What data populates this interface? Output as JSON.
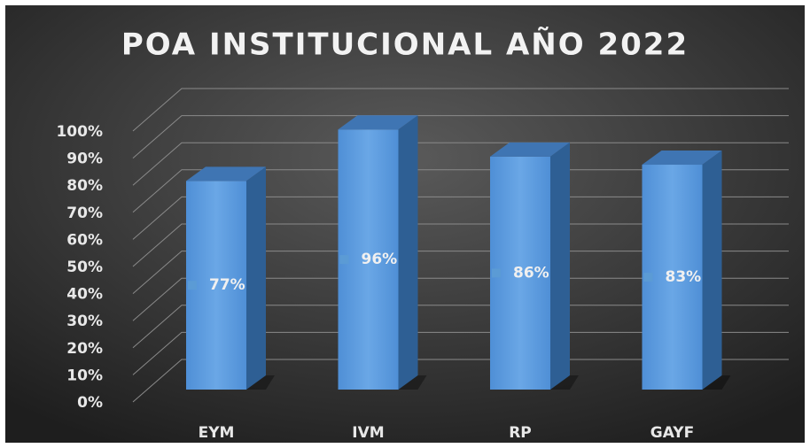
{
  "chart_data": {
    "type": "bar3d",
    "title": "POA INSTITUCIONAL AÑO 2022",
    "categories": [
      "EYM",
      "IVM",
      "RP",
      "GAYF"
    ],
    "values": [
      77,
      96,
      86,
      83
    ],
    "value_labels": [
      "77%",
      "96%",
      "86%",
      "83%"
    ],
    "color": "#5b9bd5",
    "ylim": [
      0,
      100
    ],
    "yticks": [
      {
        "value": 0,
        "label": "0%"
      },
      {
        "value": 10,
        "label": "10%"
      },
      {
        "value": 20,
        "label": "20%"
      },
      {
        "value": 30,
        "label": "30%"
      },
      {
        "value": 40,
        "label": "40%"
      },
      {
        "value": 50,
        "label": "50%"
      },
      {
        "value": 60,
        "label": "60%"
      },
      {
        "value": 70,
        "label": "70%"
      },
      {
        "value": 80,
        "label": "80%"
      },
      {
        "value": 90,
        "label": "90%"
      },
      {
        "value": 100,
        "label": "100%"
      }
    ],
    "grid": true
  }
}
